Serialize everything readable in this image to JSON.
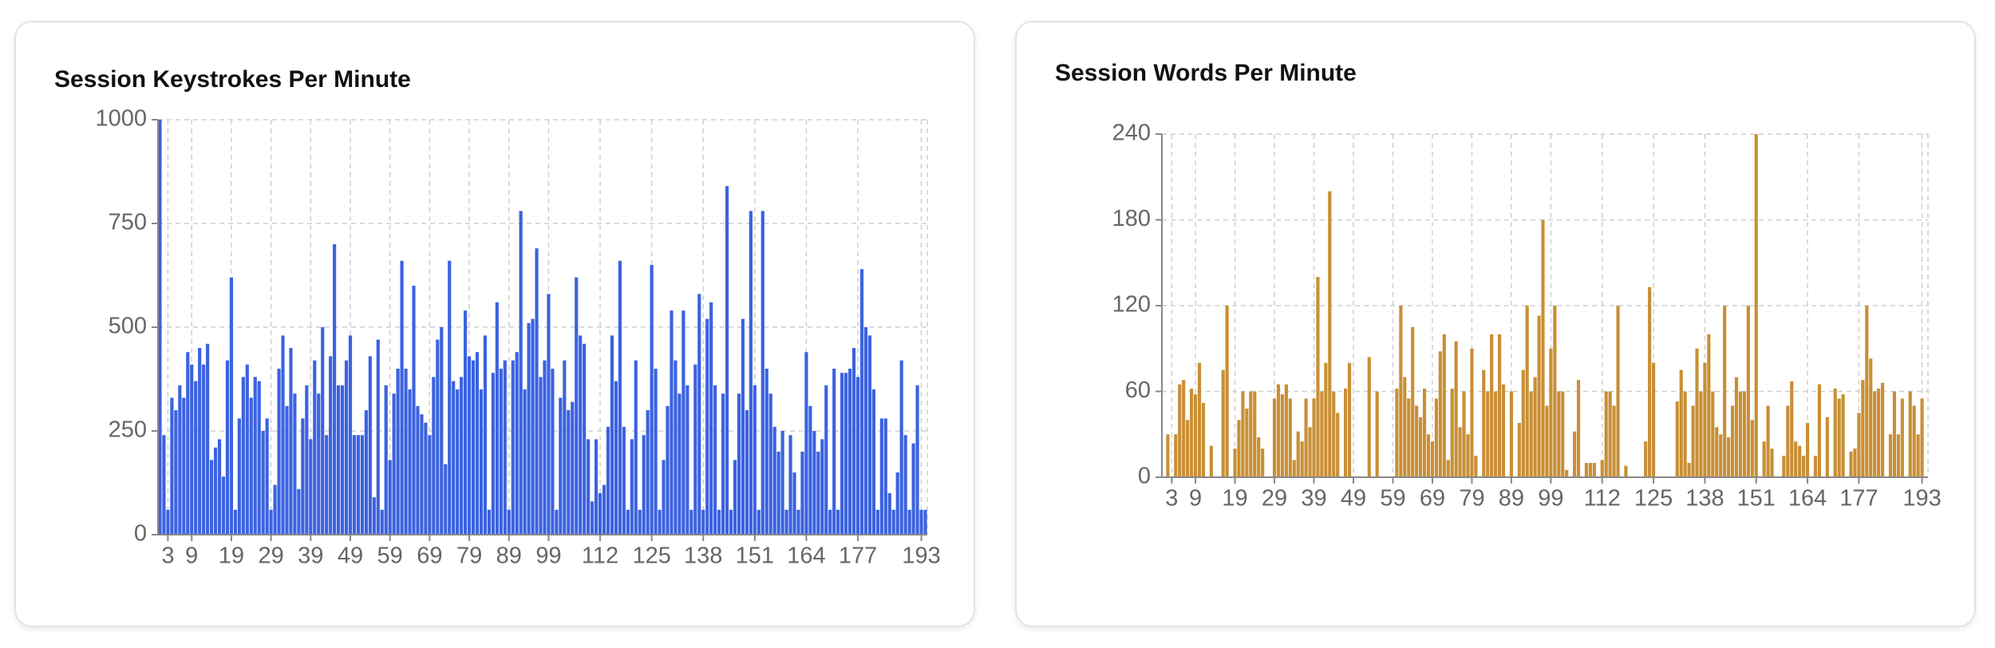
{
  "chart_data": [
    {
      "type": "bar",
      "title": "Session Keystrokes Per Minute",
      "color": "#3b62e0",
      "grid": true,
      "ylim": [
        0,
        1000
      ],
      "yticks": [
        0,
        250,
        500,
        750,
        1000
      ],
      "categories": [
        null,
        null,
        "3",
        null,
        null,
        null,
        null,
        null,
        "9",
        null,
        null,
        null,
        null,
        null,
        null,
        null,
        null,
        null,
        "19",
        null,
        null,
        null,
        null,
        null,
        null,
        null,
        null,
        null,
        "29",
        null,
        null,
        null,
        null,
        null,
        null,
        null,
        null,
        null,
        "39",
        null,
        null,
        null,
        null,
        null,
        null,
        null,
        null,
        null,
        "49",
        null,
        null,
        null,
        null,
        null,
        null,
        null,
        null,
        null,
        "59",
        null,
        null,
        null,
        null,
        null,
        null,
        null,
        null,
        null,
        "69",
        null,
        null,
        null,
        null,
        null,
        null,
        null,
        null,
        null,
        "79",
        null,
        null,
        null,
        null,
        null,
        null,
        null,
        null,
        null,
        "89",
        null,
        null,
        null,
        null,
        null,
        null,
        null,
        null,
        null,
        "99",
        null,
        null,
        null,
        null,
        null,
        null,
        null,
        null,
        null,
        null,
        null,
        null,
        "112",
        null,
        null,
        null,
        null,
        null,
        null,
        null,
        null,
        null,
        null,
        null,
        null,
        "125",
        null,
        null,
        null,
        null,
        null,
        null,
        null,
        null,
        null,
        null,
        null,
        null,
        "138",
        null,
        null,
        null,
        null,
        null,
        null,
        null,
        null,
        null,
        null,
        null,
        null,
        "151",
        null,
        null,
        null,
        null,
        null,
        null,
        null,
        null,
        null,
        null,
        null,
        null,
        "164",
        null,
        null,
        null,
        null,
        null,
        null,
        null,
        null,
        null,
        null,
        null,
        null,
        "177",
        null,
        null,
        null,
        null,
        null,
        null,
        null,
        null,
        null,
        null,
        null,
        null,
        null,
        null,
        null,
        "193",
        null
      ],
      "values": [
        1000,
        240,
        60,
        330,
        300,
        360,
        330,
        440,
        410,
        370,
        450,
        410,
        460,
        180,
        210,
        230,
        140,
        420,
        620,
        60,
        280,
        380,
        410,
        330,
        380,
        370,
        250,
        280,
        60,
        120,
        400,
        480,
        310,
        450,
        340,
        110,
        280,
        360,
        230,
        420,
        340,
        500,
        240,
        430,
        700,
        360,
        360,
        420,
        480,
        240,
        240,
        240,
        300,
        430,
        90,
        470,
        60,
        360,
        180,
        340,
        400,
        660,
        400,
        350,
        600,
        310,
        290,
        270,
        240,
        380,
        470,
        500,
        170,
        660,
        370,
        350,
        380,
        540,
        430,
        420,
        440,
        350,
        480,
        60,
        390,
        560,
        400,
        420,
        60,
        420,
        440,
        780,
        350,
        510,
        520,
        690,
        380,
        420,
        580,
        400,
        60,
        330,
        420,
        300,
        320,
        620,
        480,
        460,
        230,
        80,
        230,
        100,
        120,
        260,
        480,
        370,
        660,
        260,
        60,
        230,
        420,
        60,
        240,
        300,
        650,
        400,
        60,
        180,
        310,
        540,
        420,
        340,
        540,
        360,
        60,
        410,
        580,
        60,
        520,
        560,
        360,
        60,
        340,
        840,
        60,
        180,
        340,
        520,
        300,
        780,
        360,
        60,
        780,
        400,
        340,
        260,
        200,
        250,
        60,
        240,
        150,
        60,
        200,
        440,
        310,
        250,
        200,
        230,
        360,
        60,
        400,
        60,
        390,
        390,
        400,
        450,
        380,
        640,
        500,
        480,
        350,
        60,
        280,
        280,
        100,
        60,
        150,
        420,
        240,
        60,
        220,
        360,
        60,
        60
      ]
    },
    {
      "type": "bar",
      "title": "Session Words Per Minute",
      "color": "#c98f35",
      "grid": true,
      "ylim": [
        0,
        240
      ],
      "yticks": [
        0,
        60,
        120,
        180,
        240
      ],
      "categories": [
        null,
        null,
        "3",
        null,
        null,
        null,
        null,
        null,
        "9",
        null,
        null,
        null,
        null,
        null,
        null,
        null,
        null,
        null,
        "19",
        null,
        null,
        null,
        null,
        null,
        null,
        null,
        null,
        null,
        "29",
        null,
        null,
        null,
        null,
        null,
        null,
        null,
        null,
        null,
        "39",
        null,
        null,
        null,
        null,
        null,
        null,
        null,
        null,
        null,
        "49",
        null,
        null,
        null,
        null,
        null,
        null,
        null,
        null,
        null,
        "59",
        null,
        null,
        null,
        null,
        null,
        null,
        null,
        null,
        null,
        "69",
        null,
        null,
        null,
        null,
        null,
        null,
        null,
        null,
        null,
        "79",
        null,
        null,
        null,
        null,
        null,
        null,
        null,
        null,
        null,
        "89",
        null,
        null,
        null,
        null,
        null,
        null,
        null,
        null,
        null,
        "99",
        null,
        null,
        null,
        null,
        null,
        null,
        null,
        null,
        null,
        null,
        null,
        null,
        "112",
        null,
        null,
        null,
        null,
        null,
        null,
        null,
        null,
        null,
        null,
        null,
        null,
        "125",
        null,
        null,
        null,
        null,
        null,
        null,
        null,
        null,
        null,
        null,
        null,
        null,
        "138",
        null,
        null,
        null,
        null,
        null,
        null,
        null,
        null,
        null,
        null,
        null,
        null,
        "151",
        null,
        null,
        null,
        null,
        null,
        null,
        null,
        null,
        null,
        null,
        null,
        null,
        "164",
        null,
        null,
        null,
        null,
        null,
        null,
        null,
        null,
        null,
        null,
        null,
        null,
        "177",
        null,
        null,
        null,
        null,
        null,
        null,
        null,
        null,
        null,
        null,
        null,
        null,
        null,
        null,
        null,
        "193",
        null
      ],
      "values": [
        0,
        30,
        0,
        30,
        65,
        68,
        40,
        62,
        58,
        80,
        52,
        0,
        22,
        0,
        0,
        75,
        120,
        0,
        20,
        40,
        60,
        48,
        60,
        60,
        28,
        20,
        0,
        0,
        55,
        65,
        58,
        65,
        55,
        12,
        32,
        25,
        55,
        35,
        55,
        140,
        60,
        80,
        200,
        60,
        45,
        0,
        62,
        80,
        0,
        0,
        0,
        0,
        84,
        0,
        60,
        0,
        0,
        0,
        0,
        62,
        120,
        70,
        55,
        105,
        50,
        42,
        62,
        30,
        25,
        55,
        88,
        100,
        12,
        62,
        95,
        35,
        60,
        30,
        90,
        15,
        0,
        75,
        60,
        100,
        60,
        100,
        65,
        0,
        60,
        0,
        38,
        75,
        120,
        60,
        70,
        113,
        180,
        50,
        90,
        120,
        60,
        60,
        5,
        0,
        32,
        68,
        0,
        10,
        10,
        10,
        0,
        12,
        60,
        60,
        50,
        120,
        0,
        8,
        0,
        0,
        0,
        0,
        25,
        133,
        80,
        0,
        0,
        0,
        0,
        0,
        53,
        75,
        60,
        10,
        50,
        90,
        60,
        80,
        100,
        60,
        35,
        30,
        120,
        28,
        50,
        70,
        60,
        60,
        120,
        40,
        240,
        0,
        25,
        50,
        20,
        0,
        0,
        15,
        50,
        67,
        25,
        22,
        15,
        38,
        0,
        15,
        65,
        0,
        42,
        0,
        62,
        55,
        58,
        0,
        18,
        20,
        45,
        68,
        120,
        83,
        60,
        62,
        66,
        0,
        30,
        60,
        30,
        55,
        0,
        60,
        50,
        30,
        55,
        0
      ]
    }
  ]
}
